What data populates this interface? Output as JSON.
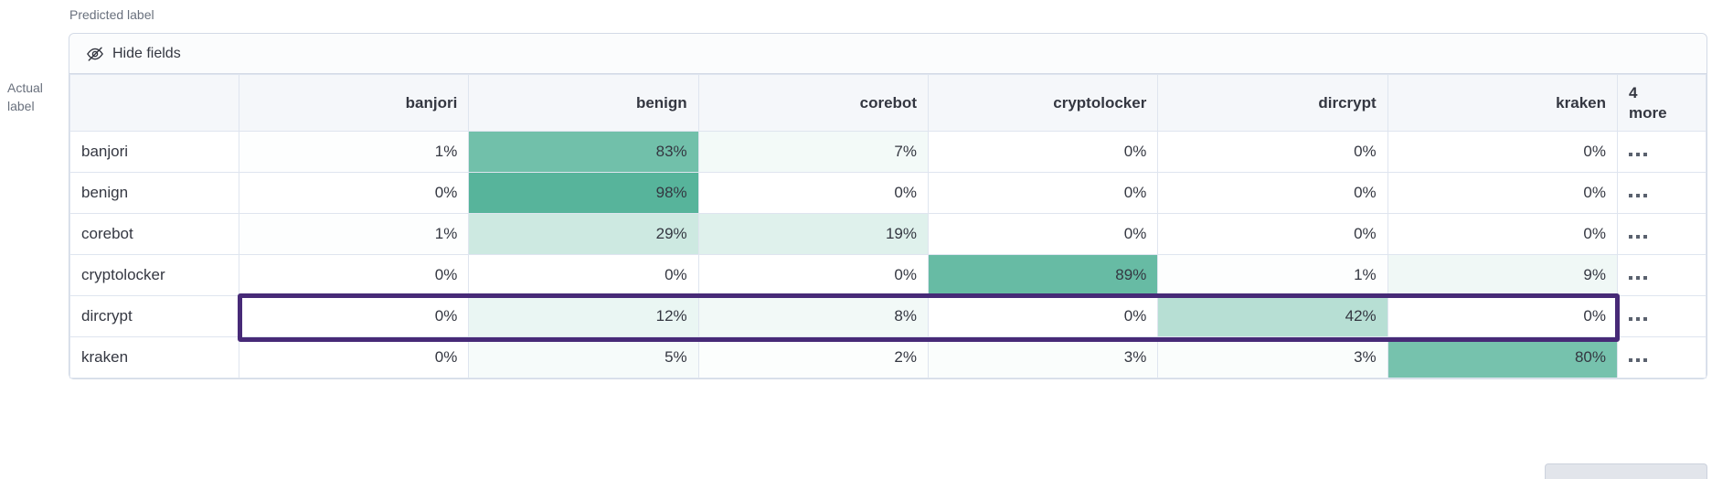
{
  "axis": {
    "predicted": "Predicted label",
    "actual": [
      "Actual",
      "label"
    ]
  },
  "toolbar": {
    "hide_fields_label": "Hide fields"
  },
  "icons": {
    "toolbar_icon": "eye-slash-icon",
    "row_actions_icon": "boxes-horizontal-icon"
  },
  "matrix": {
    "predicted_columns": [
      "banjori",
      "benign",
      "corebot",
      "cryptolocker",
      "dircrypt",
      "kraken"
    ],
    "more_column_line1": "4",
    "more_column_line2": "more",
    "rows": [
      {
        "actual_label": "banjori",
        "values_percent": [
          1,
          83,
          7,
          0,
          0,
          0
        ],
        "highlighted": false
      },
      {
        "actual_label": "benign",
        "values_percent": [
          0,
          98,
          0,
          0,
          0,
          0
        ],
        "highlighted": false
      },
      {
        "actual_label": "corebot",
        "values_percent": [
          1,
          29,
          19,
          0,
          0,
          0
        ],
        "highlighted": false
      },
      {
        "actual_label": "cryptolocker",
        "values_percent": [
          0,
          0,
          0,
          89,
          1,
          9
        ],
        "highlighted": false
      },
      {
        "actual_label": "dircrypt",
        "values_percent": [
          0,
          12,
          8,
          0,
          42,
          0
        ],
        "highlighted": true
      },
      {
        "actual_label": "kraken",
        "values_percent": [
          0,
          5,
          2,
          3,
          3,
          80
        ],
        "highlighted": false
      }
    ]
  },
  "colors": {
    "heatmap_base": "#54B399",
    "highlight_border": "#472a77",
    "header_bg": "#f5f7fa"
  },
  "chart_data": {
    "type": "heatmap",
    "xlabel": "Predicted label",
    "ylabel": "Actual label",
    "x_categories": [
      "banjori",
      "benign",
      "corebot",
      "cryptolocker",
      "dircrypt",
      "kraken"
    ],
    "y_categories": [
      "banjori",
      "benign",
      "corebot",
      "cryptolocker",
      "dircrypt",
      "kraken"
    ],
    "values_percent": [
      [
        1,
        83,
        7,
        0,
        0,
        0
      ],
      [
        0,
        98,
        0,
        0,
        0,
        0
      ],
      [
        1,
        29,
        19,
        0,
        0,
        0
      ],
      [
        0,
        0,
        0,
        89,
        1,
        9
      ],
      [
        0,
        12,
        8,
        0,
        42,
        0
      ],
      [
        0,
        5,
        2,
        3,
        3,
        80
      ]
    ],
    "legend": "off",
    "annotations": [
      "row 'dircrypt' outlined with purple highlight box"
    ]
  }
}
